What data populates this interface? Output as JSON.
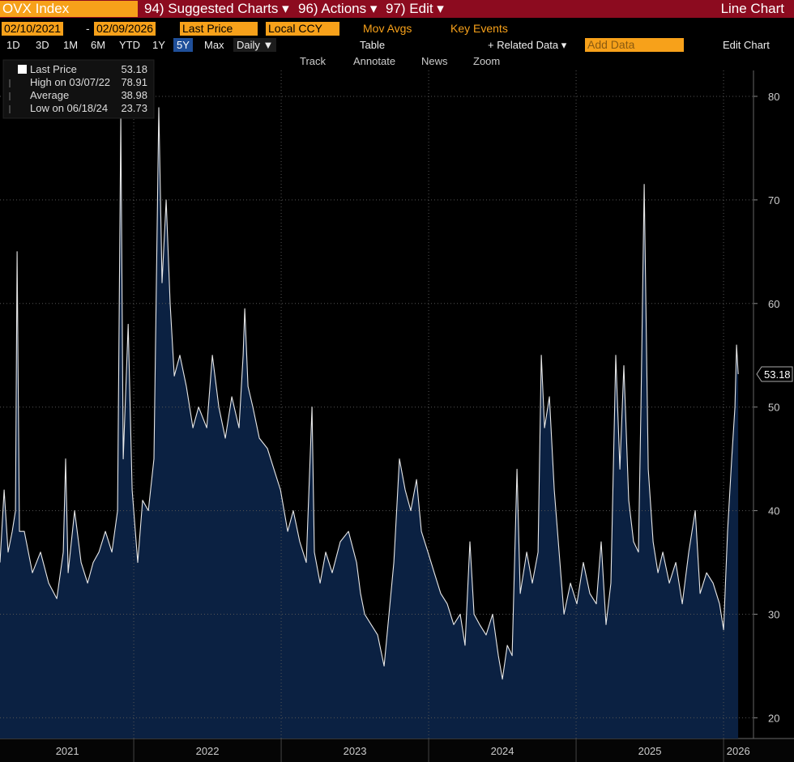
{
  "header": {
    "ticker": "OVX Index",
    "menus": [
      "94) Suggested Charts ▾",
      "96) Actions ▾",
      "97) Edit ▾"
    ],
    "chart_type_label": "Line Chart"
  },
  "controls": {
    "start_date": "02/10/2021",
    "dash": "-",
    "end_date": "02/09/2026",
    "field": "Last Price",
    "currency": "Local CCY",
    "mov_avgs": "Mov Avgs",
    "key_events": "Key Events",
    "periods": [
      "1D",
      "3D",
      "1M",
      "6M",
      "YTD",
      "1Y",
      "5Y",
      "Max"
    ],
    "frequency": "Daily ▼",
    "table": "Table",
    "related_data": "+ Related Data ▾",
    "add_data": "Add Data",
    "edit_chart": "Edit Chart"
  },
  "tools": [
    "Track",
    "Annotate",
    "News",
    "Zoom"
  ],
  "chart_data": {
    "type": "line",
    "fill": true,
    "legend": [
      {
        "label": "Last Price",
        "value": 53.18
      },
      {
        "label": "High on 03/07/22",
        "value": 78.91
      },
      {
        "label": "Average",
        "value": 38.98
      },
      {
        "label": "Low on 06/18/24",
        "value": 23.73
      }
    ],
    "x": [
      2021.093,
      2021.121,
      2021.148,
      2021.176,
      2021.198,
      2021.209,
      2021.225,
      2021.258,
      2021.313,
      2021.368,
      2021.423,
      2021.478,
      2021.522,
      2021.538,
      2021.555,
      2021.599,
      2021.643,
      2021.687,
      2021.725,
      2021.764,
      2021.808,
      2021.852,
      2021.89,
      2021.912,
      2021.929,
      2021.962,
      2021.989,
      2022.027,
      2022.06,
      2022.099,
      2022.137,
      2022.17,
      2022.192,
      2022.22,
      2022.247,
      2022.275,
      2022.313,
      2022.357,
      2022.401,
      2022.44,
      2022.495,
      2022.533,
      2022.577,
      2022.621,
      2022.665,
      2022.714,
      2022.742,
      2022.753,
      2022.775,
      2022.808,
      2022.852,
      2022.907,
      2022.951,
      2022.995,
      2023.044,
      2023.082,
      2023.126,
      2023.17,
      2023.209,
      2023.225,
      2023.264,
      2023.302,
      2023.346,
      2023.401,
      2023.456,
      2023.511,
      2023.538,
      2023.566,
      2023.61,
      2023.654,
      2023.698,
      2023.731,
      2023.764,
      2023.802,
      2023.841,
      2023.879,
      2023.918,
      2023.951,
      2023.995,
      2024.038,
      2024.082,
      2024.126,
      2024.17,
      2024.214,
      2024.247,
      2024.28,
      2024.308,
      2024.346,
      2024.39,
      2024.434,
      2024.473,
      2024.5,
      2024.533,
      2024.566,
      2024.599,
      2024.621,
      2024.665,
      2024.703,
      2024.742,
      2024.764,
      2024.786,
      2024.819,
      2024.852,
      2024.885,
      2024.918,
      2024.962,
      2025.005,
      2025.049,
      2025.093,
      2025.137,
      2025.17,
      2025.203,
      2025.236,
      2025.269,
      2025.297,
      2025.324,
      2025.357,
      2025.39,
      2025.423,
      2025.44,
      2025.462,
      2025.489,
      2025.522,
      2025.555,
      2025.588,
      2025.632,
      2025.676,
      2025.72,
      2025.764,
      2025.808,
      2025.841,
      2025.885,
      2025.929,
      2025.973,
      2026.0,
      2026.027,
      2026.055,
      2026.077,
      2026.088,
      2026.099
    ],
    "series": [
      {
        "color": "#e8e8e8",
        "fill_color": "#0b2142",
        "values": [
          35,
          42,
          36,
          38,
          40,
          65,
          38,
          38,
          34,
          36,
          33,
          31.5,
          36,
          45,
          34,
          40,
          35,
          33,
          35,
          36,
          38,
          36,
          40,
          78,
          45,
          58,
          42,
          35,
          41,
          40,
          45,
          78.91,
          62,
          70,
          60,
          53,
          55,
          52,
          48,
          50,
          48,
          55,
          50,
          47,
          51,
          48,
          55,
          59.5,
          52,
          50,
          47,
          46,
          44,
          42,
          38,
          40,
          37,
          35,
          50,
          36,
          33,
          36,
          34,
          37,
          38,
          35,
          32,
          30,
          29,
          28,
          25,
          30,
          35,
          45,
          42,
          40,
          43,
          38,
          36,
          34,
          32,
          31,
          29,
          30,
          27,
          37,
          30,
          29,
          28,
          30,
          26,
          23.73,
          27,
          26,
          44,
          32,
          36,
          33,
          36,
          55,
          48,
          51,
          42,
          36,
          30,
          33,
          31,
          35,
          32,
          31,
          37,
          29,
          33,
          55,
          44,
          54,
          41,
          37,
          36,
          50,
          71.5,
          44,
          37,
          34,
          36,
          33,
          35,
          31,
          36,
          40,
          32,
          34,
          33,
          31,
          28.5,
          38,
          45,
          50,
          56,
          53.18
        ]
      }
    ],
    "xlim": [
      2021.093,
      2026.203
    ],
    "ylim": [
      18,
      82.5
    ],
    "yticks": [
      20,
      30,
      40,
      50,
      60,
      70,
      80
    ],
    "xticks": [
      {
        "value": 2021.55,
        "label": "2021"
      },
      {
        "value": 2022.5,
        "label": "2022"
      },
      {
        "value": 2023.5,
        "label": "2023"
      },
      {
        "value": 2024.5,
        "label": "2024"
      },
      {
        "value": 2025.5,
        "label": "2025"
      },
      {
        "value": 2026.1,
        "label": "2026"
      }
    ],
    "xgrid": [
      2022,
      2023,
      2024,
      2025,
      2026
    ],
    "grid": true
  }
}
